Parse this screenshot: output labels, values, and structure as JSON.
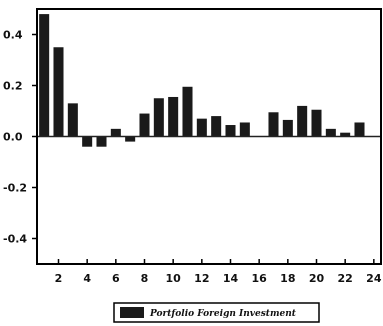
{
  "chart_data": {
    "type": "bar",
    "x": [
      1,
      2,
      3,
      4,
      5,
      6,
      7,
      8,
      9,
      10,
      11,
      12,
      13,
      14,
      15,
      16,
      17,
      18,
      19,
      20,
      21,
      22,
      23,
      24
    ],
    "series": [
      {
        "name": "Portfolio Foreign Investment",
        "values": [
          0.48,
          0.35,
          0.13,
          -0.04,
          -0.04,
          0.03,
          -0.02,
          0.09,
          0.15,
          0.155,
          0.195,
          0.07,
          0.08,
          0.045,
          0.055,
          0.0,
          0.095,
          0.065,
          0.12,
          0.105,
          0.03,
          0.015,
          0.055,
          0.0
        ]
      }
    ],
    "xticks": [
      2,
      4,
      6,
      8,
      10,
      12,
      14,
      16,
      18,
      20,
      22,
      24
    ],
    "xtick_labels": [
      "2",
      "4",
      "6",
      "8",
      "10",
      "12",
      "14",
      "16",
      "18",
      "20",
      "22",
      "24"
    ],
    "yticks": [
      0.4,
      0.2,
      0.0,
      -0.2,
      -0.4
    ],
    "ytick_labels": [
      "0.4",
      "0.2",
      "0.0",
      "-0.2",
      "-0.4"
    ],
    "ylim": [
      -0.5,
      0.5
    ],
    "xlim": [
      0.5,
      24.5
    ],
    "zero_line": true,
    "grid": false,
    "legend_position": "bottom-center",
    "bar_color": "#1a1a1a",
    "zero_line_color": "#222222",
    "title": "",
    "xlabel": "",
    "ylabel": ""
  }
}
